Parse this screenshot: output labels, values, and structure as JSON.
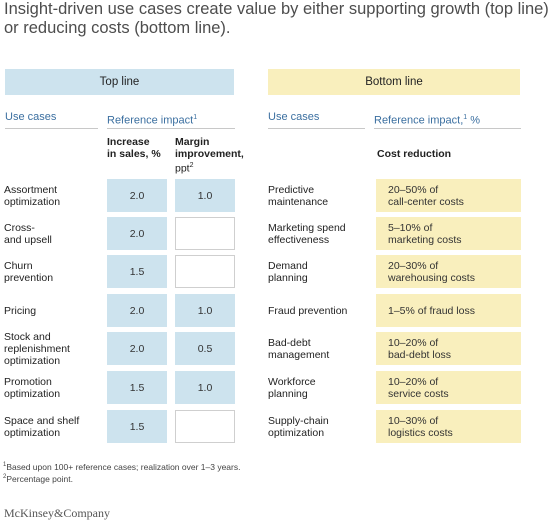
{
  "title": "Insight-driven use cases create value by either supporting growth (top line) or reducing costs (bottom line).",
  "chart_data": {
    "type": "table",
    "top_line": {
      "header": "Top line",
      "use_cases_label": "Use cases",
      "reference_impact_label": "Reference impact",
      "footnote_mark": "1",
      "col_sales_l1": "Increase",
      "col_sales_l2": "in sales, %",
      "col_margin_l1": "Margin",
      "col_margin_l2": "improvement,",
      "col_margin_l3": "ppt",
      "col_margin_mark": "2",
      "rows": [
        {
          "name_l1": "Assortment",
          "name_l2": "optimization",
          "sales": "2.0",
          "margin": "1.0"
        },
        {
          "name_l1": "Cross-",
          "name_l2": "and upsell",
          "sales": "2.0",
          "margin": ""
        },
        {
          "name_l1": "Churn",
          "name_l2": "prevention",
          "sales": "1.5",
          "margin": ""
        },
        {
          "name_l1": "Pricing",
          "name_l2": "",
          "sales": "2.0",
          "margin": "1.0"
        },
        {
          "name_l1": "Stock and",
          "name_l2": "replenishment",
          "name_l3": "optimization",
          "sales": "2.0",
          "margin": "0.5"
        },
        {
          "name_l1": "Promotion",
          "name_l2": "optimization",
          "sales": "1.5",
          "margin": "1.0"
        },
        {
          "name_l1": "Space and shelf",
          "name_l2": "optimization",
          "sales": "1.5",
          "margin": ""
        }
      ]
    },
    "bottom_line": {
      "header": "Bottom line",
      "use_cases_label": "Use cases",
      "reference_impact_label": "Reference impact,",
      "footnote_mark": "1",
      "unit": "%",
      "col_cost": "Cost reduction",
      "rows": [
        {
          "name_l1": "Predictive",
          "name_l2": "maintenance",
          "cost_l1": "20–50% of",
          "cost_l2": "call-center costs"
        },
        {
          "name_l1": "Marketing spend",
          "name_l2": "effectiveness",
          "cost_l1": "5–10% of",
          "cost_l2": "marketing costs"
        },
        {
          "name_l1": "Demand",
          "name_l2": "planning",
          "cost_l1": "20–30% of",
          "cost_l2": "warehousing costs"
        },
        {
          "name_l1": "Fraud prevention",
          "name_l2": "",
          "cost_l1": "1–5% of fraud loss",
          "cost_l2": ""
        },
        {
          "name_l1": "Bad-debt",
          "name_l2": "management",
          "cost_l1": "10–20% of",
          "cost_l2": "bad-debt loss"
        },
        {
          "name_l1": "Workforce",
          "name_l2": "planning",
          "cost_l1": "10–20% of",
          "cost_l2": "service costs"
        },
        {
          "name_l1": "Supply-chain",
          "name_l2": "optimization",
          "cost_l1": "10–30% of",
          "cost_l2": "logistics costs"
        }
      ]
    }
  },
  "footnotes": {
    "f1_mark": "1",
    "f1_text": "Based upon 100+ reference cases; realization over 1–3 years.",
    "f2_mark": "2",
    "f2_text": "Percentage point."
  },
  "brand": "McKinsey&Company"
}
